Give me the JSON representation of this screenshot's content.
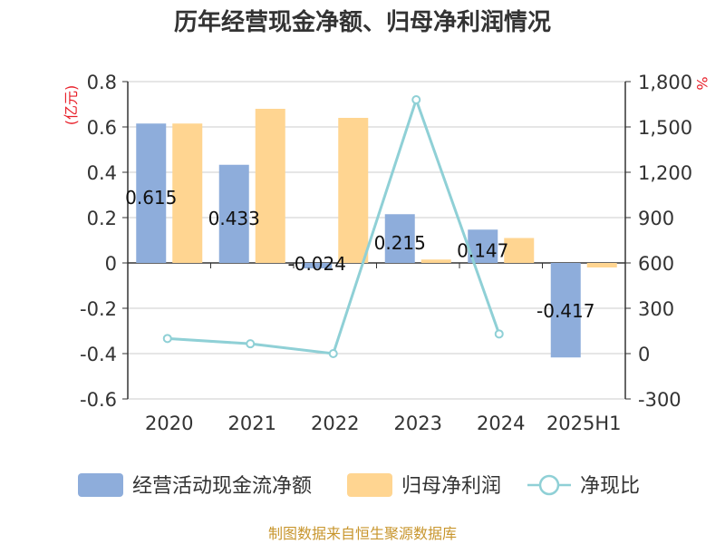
{
  "chart_data": {
    "type": "bar",
    "title": "历年经营现金净额、归母净利润情况",
    "categories": [
      "2020",
      "2021",
      "2022",
      "2023",
      "2024",
      "2025H1"
    ],
    "left_axis": {
      "unit": "(亿元)",
      "ylim": [
        -0.6,
        0.8
      ],
      "ticks": [
        "0.8",
        "0.6",
        "0.4",
        "0.2",
        "0",
        "-0.2",
        "-0.4",
        "-0.6"
      ],
      "tick_values": [
        0.8,
        0.6,
        0.4,
        0.2,
        0,
        -0.2,
        -0.4,
        -0.6
      ]
    },
    "right_axis": {
      "unit": "%",
      "ylim": [
        -300,
        1800
      ],
      "ticks": [
        "1,800",
        "1,500",
        "1,200",
        "900",
        "600",
        "300",
        "0",
        "-300"
      ],
      "tick_values": [
        1800,
        1500,
        1200,
        900,
        600,
        300,
        0,
        -300
      ]
    },
    "series": [
      {
        "name": "经营活动现金流净额",
        "kind": "bar",
        "axis": "left",
        "color": "#8eaddb",
        "values": [
          0.615,
          0.433,
          -0.024,
          0.215,
          0.147,
          -0.417
        ],
        "labels": [
          "0.615",
          "0.433",
          "-0.024",
          "0.215",
          "0.147",
          "-0.417"
        ]
      },
      {
        "name": "归母净利润",
        "kind": "bar",
        "axis": "right_share_left",
        "color": "#ffd591",
        "values": [
          0.615,
          0.68,
          0.64,
          0.015,
          0.11,
          -0.02
        ]
      },
      {
        "name": "净现比",
        "kind": "line",
        "axis": "right",
        "color": "#8fd0d6",
        "values": [
          100,
          65,
          0,
          1680,
          130,
          null
        ]
      }
    ],
    "legend": "bottom",
    "grid": true,
    "source": "制图数据来自恒生聚源数据库"
  }
}
